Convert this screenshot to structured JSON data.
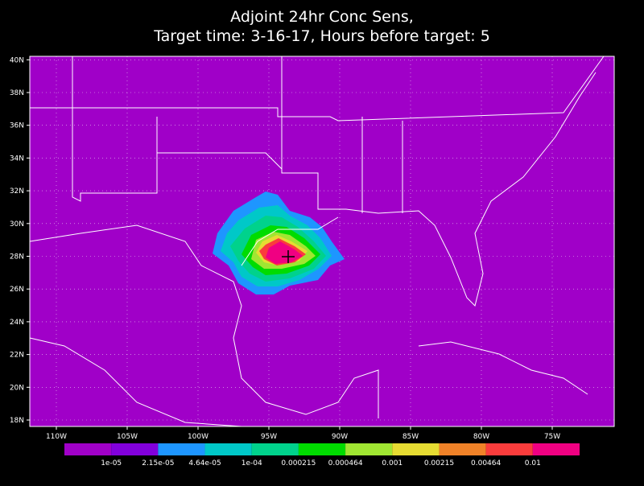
{
  "title": [
    "Adjoint 24hr Conc Sens,",
    "Target time: 3-16-17, Hours before target: 5"
  ],
  "lat_labels": [
    "18N",
    "20N",
    "22N",
    "24N",
    "26N",
    "28N",
    "30N",
    "32N",
    "34N",
    "36N",
    "38N",
    "40N"
  ],
  "lon_labels": [
    "110W",
    "105W",
    "100W",
    "95W",
    "90W",
    "85W",
    "80W",
    "75W"
  ],
  "colorbar": {
    "labels": [
      "1e-05",
      "2.15e-05",
      "4.64e-05",
      "1e-04",
      "0.000215",
      "0.000464",
      "0.001",
      "0.00215",
      "0.00464",
      "0.01"
    ],
    "colors": [
      "#a000c8",
      "#8200dc",
      "#1e96ff",
      "#00c8c8",
      "#00d28c",
      "#00dc00",
      "#a0e632",
      "#e6dc32",
      "#f08228",
      "#fa3c3c",
      "#f00082"
    ]
  }
}
